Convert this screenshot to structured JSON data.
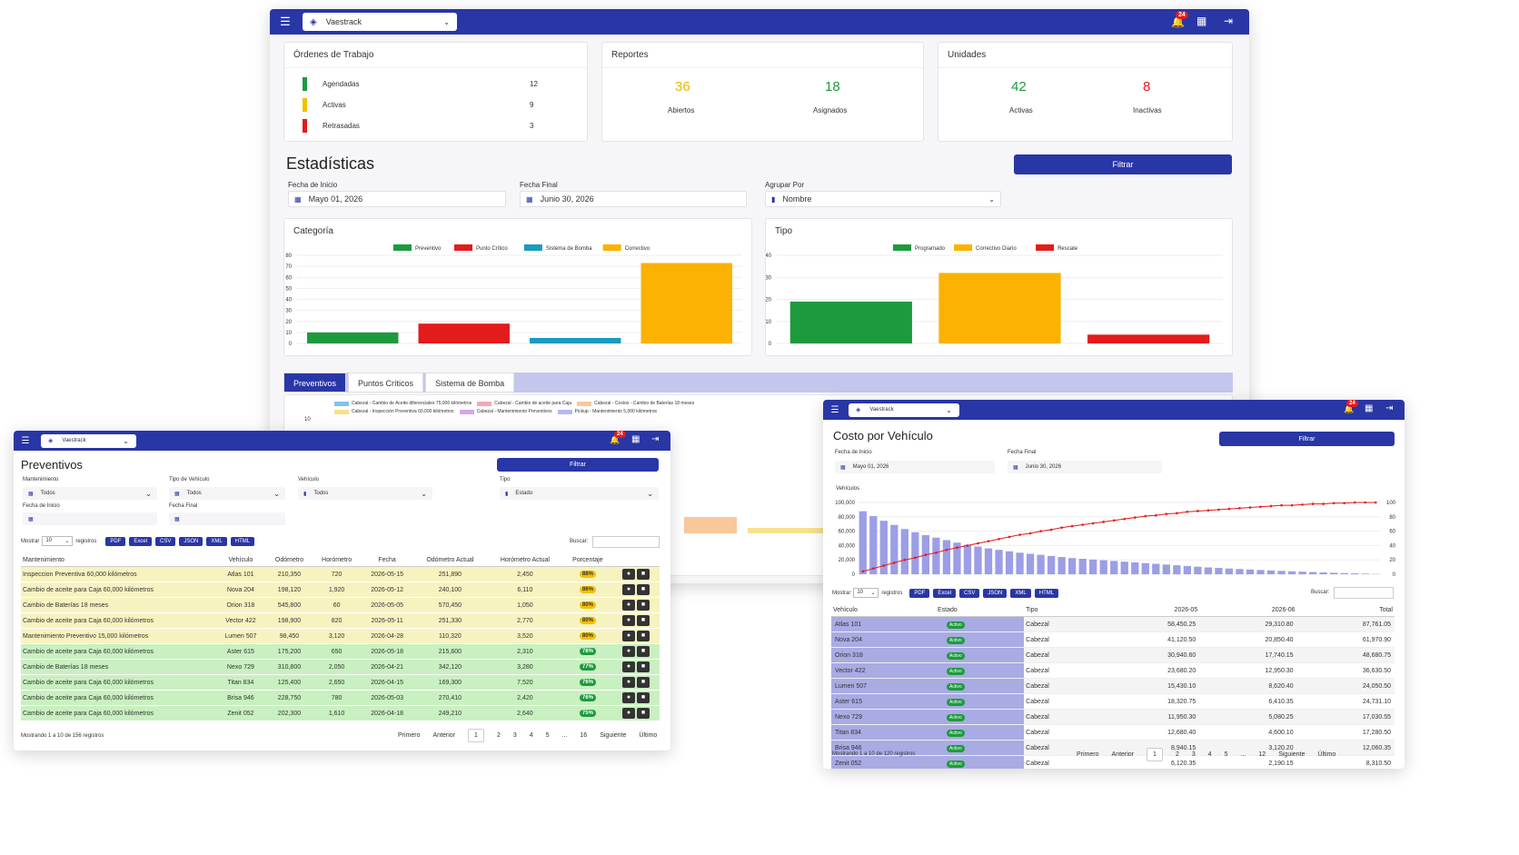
{
  "app": {
    "selector": "Vaestrack",
    "notifications": "24"
  },
  "back": {
    "ordenes": {
      "title": "Órdenes de Trabajo",
      "items": [
        {
          "label": "Agendadas",
          "value": "12",
          "color": "#1e9a3e"
        },
        {
          "label": "Activas",
          "value": "9",
          "color": "#f3c000"
        },
        {
          "label": "Retrasadas",
          "value": "3",
          "color": "#e31b1b"
        }
      ]
    },
    "reportes": {
      "title": "Reportes",
      "a_value": "36",
      "a_label": "Abiertos",
      "b_value": "18",
      "b_label": "Asignados"
    },
    "unidades": {
      "title": "Unidades",
      "a_value": "42",
      "a_label": "Activas",
      "b_value": "8",
      "b_label": "Inactivas"
    },
    "stats_title": "Estadísticas",
    "filtrar": "Filtrar",
    "fecha_inicio_label": "Fecha de Inicio",
    "fecha_inicio": "Mayo 01, 2026",
    "fecha_final_label": "Fecha Final",
    "fecha_final": "Junio 30, 2026",
    "agrupar_label": "Agrupar Por",
    "agrupar": "Nombre",
    "categoria_title": "Categoría",
    "tipo_title": "Tipo",
    "tabs": [
      "Preventivos",
      "Puntos Críticos",
      "Sistema de Bomba"
    ],
    "bottom_legend": [
      {
        "label": "Cabezal - Cambio de Aceite diferenciales 75,000 kilómetros",
        "color": "#7ec3ef"
      },
      {
        "label": "Cabezal - Cambio de aceite para Caja",
        "color": "#f4a8b4"
      },
      {
        "label": "Cabezal - Costos - Cambio de Baterías 18 meses",
        "color": "#f9c79a"
      },
      {
        "label": "Cabezal - Inspección Preventiva 60,000 kilómetros",
        "color": "#f8e08e"
      },
      {
        "label": "Cabezal - Mantenimiento Preventivos",
        "color": "#d4a6ea"
      },
      {
        "label": "Pickup - Mantenimiento 5,000 kilómetros",
        "color": "#b6b8ef"
      }
    ],
    "bottom_y_label": "10"
  },
  "chart_data": [
    {
      "type": "bar",
      "title": "Categoría",
      "ylim": [
        0,
        80
      ],
      "yticks": [
        "80",
        "70",
        "60",
        "50",
        "40",
        "30",
        "20",
        "10",
        "0"
      ],
      "series": [
        {
          "name": "Preventivo",
          "color": "#1e9a3e",
          "values": [
            10
          ]
        },
        {
          "name": "Punto Crítico",
          "color": "#e31b1b",
          "values": [
            18
          ]
        },
        {
          "name": "Sistema de Bomba",
          "color": "#1a9bc0",
          "values": [
            5
          ]
        },
        {
          "name": "Correctivo",
          "color": "#fbb200",
          "values": [
            73
          ]
        }
      ]
    },
    {
      "type": "bar",
      "title": "Tipo",
      "ylim": [
        0,
        40
      ],
      "yticks": [
        "40",
        "30",
        "20",
        "10",
        "0"
      ],
      "series": [
        {
          "name": "Programado",
          "color": "#1e9a3e",
          "values": [
            19
          ]
        },
        {
          "name": "Correctivo Diario",
          "color": "#fbb200",
          "values": [
            32
          ]
        },
        {
          "name": "Rescate",
          "color": "#e31b1b",
          "values": [
            4
          ]
        }
      ]
    },
    {
      "type": "bar",
      "title": "Vehículos",
      "ylim": [
        0,
        100000
      ],
      "yticks": [
        "100,000",
        "80,000",
        "60,000",
        "40,000",
        "20,000",
        "0"
      ],
      "y2ticks": [
        "100",
        "80",
        "60",
        "40",
        "20",
        "0"
      ],
      "values": [
        87761,
        81000,
        74500,
        68700,
        63000,
        58500,
        54500,
        51000,
        47500,
        44000,
        41000,
        38500,
        36000,
        34000,
        32000,
        30000,
        28500,
        27000,
        25500,
        24000,
        22500,
        21500,
        20500,
        19500,
        18500,
        17500,
        16500,
        15500,
        14500,
        13500,
        12500,
        11500,
        10500,
        9500,
        8800,
        8000,
        7300,
        6600,
        5900,
        5300,
        4700,
        4100,
        3600,
        3100,
        2600,
        2100,
        1600,
        1200,
        800,
        400
      ],
      "cumulative": [
        4,
        8,
        12,
        16,
        20,
        23,
        27,
        30,
        34,
        37,
        40,
        43,
        46,
        49,
        52,
        55,
        57,
        60,
        62,
        65,
        67,
        69,
        71,
        73,
        75,
        77,
        79,
        81,
        82,
        84,
        85,
        87,
        88,
        89,
        90,
        91,
        92,
        93,
        94,
        95,
        96,
        96,
        97,
        98,
        98,
        99,
        99,
        100,
        100,
        100
      ]
    }
  ],
  "prev": {
    "title": "Preventivos",
    "filtrar": "Filtrar",
    "mant_label": "Mantenimiento",
    "mant": "Todos",
    "tipo_veh_label": "Tipo de Vehículo",
    "tipo_veh": "Todos",
    "veh_label": "Vehículo",
    "veh": "Todos",
    "tipo_label": "Tipo",
    "tipo": "Estado",
    "fi_label": "Fecha de Inicio",
    "ff_label": "Fecha Final",
    "mostrar": "Mostrar",
    "mostrar_val": "10",
    "registros": "registros",
    "exports": [
      "PDF",
      "Excel",
      "CSV",
      "JSON",
      "XML",
      "HTML"
    ],
    "buscar": "Buscar:",
    "headers": [
      "Mantenimiento",
      "Vehículo",
      "Odómetro",
      "Horómetro",
      "Fecha",
      "Odómetro Actual",
      "Horómetro Actual",
      "Porcentaje"
    ],
    "rows": [
      [
        "Inspeccion Preventiva 60,000 kilómetros",
        "Atlas 101",
        "210,350",
        "720",
        "2026-05-15",
        "251,890",
        "2,450",
        "88%"
      ],
      [
        "Cambio de aceite para Caja 60,000 kilómetros",
        "Nova 204",
        "198,120",
        "1,920",
        "2026-05-12",
        "240,100",
        "6,110",
        "86%"
      ],
      [
        "Cambio de Baterías 18 meses",
        "Orion 318",
        "545,800",
        "60",
        "2026-05-05",
        "570,450",
        "1,050",
        "80%"
      ],
      [
        "Cambio de aceite para Caja 60,000 kilómetros",
        "Vector 422",
        "198,900",
        "820",
        "2026-05-11",
        "251,330",
        "2,770",
        "80%"
      ],
      [
        "Mantenimiento Preventivo 15,000 kilómetros",
        "Lumen 507",
        "98,450",
        "3,120",
        "2026-04-28",
        "110,320",
        "3,520",
        "80%"
      ],
      [
        "Cambio de aceite para Caja 60,000 kilómetros",
        "Aster 615",
        "175,200",
        "650",
        "2026-05-18",
        "215,600",
        "2,310",
        "78%"
      ],
      [
        "Cambio de Baterías 18 meses",
        "Nexo 729",
        "310,800",
        "2,050",
        "2026-04-21",
        "342,120",
        "3,280",
        "77%"
      ],
      [
        "Cambio de aceite para Caja 60,000 kilómetros",
        "Titan 834",
        "125,400",
        "2,650",
        "2026-04-15",
        "169,300",
        "7,520",
        "76%"
      ],
      [
        "Cambio de aceite para Caja 60,000 kilómetros",
        "Brisa 946",
        "228,750",
        "780",
        "2026-05-03",
        "270,410",
        "2,420",
        "76%"
      ],
      [
        "Cambio de aceite para Caja 60,000 kilómetros",
        "Zenit 052",
        "202,300",
        "1,610",
        "2026-04-18",
        "249,210",
        "2,640",
        "75%"
      ]
    ],
    "info": "Mostrando 1 a 10 de 156 registros",
    "pages": [
      "Primero",
      "Anterior",
      "1",
      "2",
      "3",
      "4",
      "5",
      "...",
      "16",
      "Siguiente",
      "Último"
    ]
  },
  "costo": {
    "title": "Costo por Vehículo",
    "filtrar": "Filtrar",
    "fi_label": "Fecha de Inicio",
    "fi": "Mayo 01, 2026",
    "ff_label": "Fecha Final",
    "ff": "Junio 30, 2026",
    "chart_label": "Vehículos",
    "mostrar": "Mostrar",
    "mostrar_val": "10",
    "registros": "registros",
    "exports": [
      "PDF",
      "Excel",
      "CSV",
      "JSON",
      "XML",
      "HTML"
    ],
    "buscar": "Buscar:",
    "headers": [
      "Vehículo",
      "Estado",
      "Tipo",
      "2026-05",
      "2026-06",
      "Total"
    ],
    "rows": [
      [
        "Atlas 101",
        "Activo",
        "Cabezal",
        "58,450.25",
        "29,310.80",
        "87,761.05"
      ],
      [
        "Nova 204",
        "Activo",
        "Cabezal",
        "41,120.50",
        "20,850.40",
        "61,970.90"
      ],
      [
        "Orion 318",
        "Activo",
        "Cabezal",
        "30,940.60",
        "17,740.15",
        "48,680.75"
      ],
      [
        "Vector 422",
        "Activo",
        "Cabezal",
        "23,680.20",
        "12,950.30",
        "36,630.50"
      ],
      [
        "Lumen 507",
        "Activo",
        "Cabezal",
        "15,430.10",
        "8,620.40",
        "24,050.50"
      ],
      [
        "Aster 615",
        "Activo",
        "Cabezal",
        "18,320.75",
        "6,410.35",
        "24,731.10"
      ],
      [
        "Nexo 729",
        "Activo",
        "Cabezal",
        "11,950.30",
        "5,080.25",
        "17,030.55"
      ],
      [
        "Titan 834",
        "Activo",
        "Cabezal",
        "12,680.40",
        "4,600.10",
        "17,280.50"
      ],
      [
        "Brisa 946",
        "Activo",
        "Cabezal",
        "8,940.15",
        "3,120.20",
        "12,060.35"
      ],
      [
        "Zenit 052",
        "Activo",
        "Cabezal",
        "6,120.35",
        "2,190.15",
        "8,310.50"
      ]
    ],
    "info": "Mostrando 1 a 10 de 120 registros",
    "pages": [
      "Primero",
      "Anterior",
      "1",
      "2",
      "3",
      "4",
      "5",
      "...",
      "12",
      "Siguiente",
      "Último"
    ]
  }
}
